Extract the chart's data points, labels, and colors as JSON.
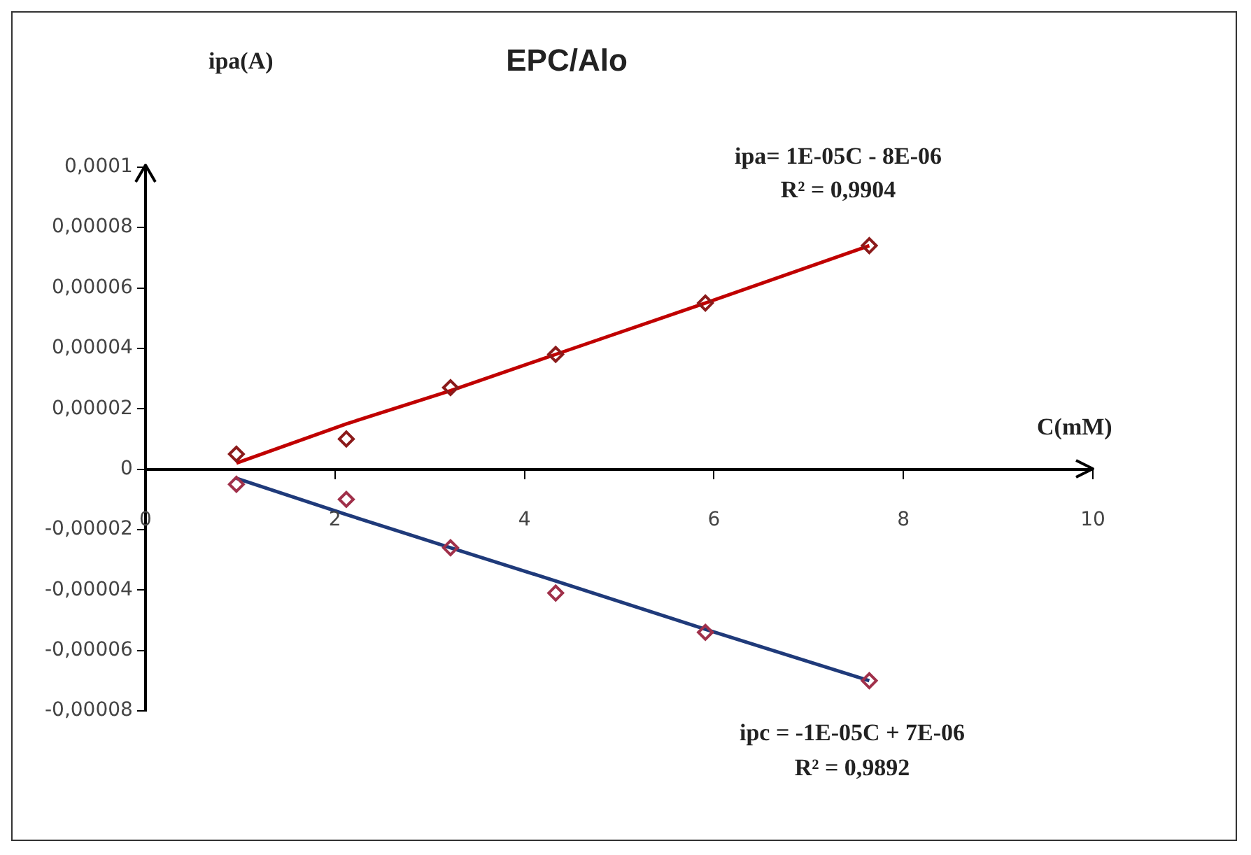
{
  "chart_data": {
    "type": "scatter",
    "title": "EPC/Alo",
    "xlabel": "C(mM)",
    "ylabel": "ipa(A)",
    "x": [
      0.96,
      2.12,
      3.22,
      4.33,
      5.91,
      7.64
    ],
    "series": [
      {
        "color": "#8b1a1a",
        "values": [
          5e-06,
          1e-05,
          2.7e-05,
          3.8e-05,
          5.5e-05,
          7.4e-05
        ]
      },
      {
        "color": "#a0304a",
        "values": [
          -5e-06,
          -1e-05,
          -2.6e-05,
          -4.1e-05,
          -5.4e-05,
          -7e-05
        ]
      },
      {
        "type": "line",
        "color": "#c00000",
        "marker": "none",
        "values": [
          2e-06,
          1.5e-05,
          2.6e-05,
          3.8e-05,
          5.5e-05,
          7.4e-05
        ]
      },
      {
        "type": "line",
        "color": "#1f3a7a",
        "marker": "none",
        "values": [
          -3e-06,
          -1.5e-05,
          -2.6e-05,
          -3.7e-05,
          -5.3e-05,
          -7e-05
        ]
      }
    ],
    "xlim": [
      0,
      10
    ],
    "xticks": [
      0,
      2,
      4,
      6,
      8,
      10
    ],
    "ylim": [
      -8e-05,
      0.0001
    ],
    "yticks": [
      {
        "value": -8e-05,
        "label": "-0,00008"
      },
      {
        "value": -6e-05,
        "label": "-0,00006"
      },
      {
        "value": -4e-05,
        "label": "-0,00004"
      },
      {
        "value": -2e-05,
        "label": "-0,00002"
      },
      {
        "value": 0,
        "label": "0"
      },
      {
        "value": 2e-05,
        "label": "0,00002"
      },
      {
        "value": 4e-05,
        "label": "0,00004"
      },
      {
        "value": 6e-05,
        "label": "0,00006"
      },
      {
        "value": 8e-05,
        "label": "0,00008"
      },
      {
        "value": 0.0001,
        "label": "0,0001"
      }
    ],
    "annotations": [
      "ipa= 1E-05C - 8E-06",
      "R² = 0,9904",
      "ipc = -1E-05C + 7E-06",
      "R² = 0,9892"
    ],
    "marker": "diamond",
    "grid": false,
    "legend": false
  }
}
